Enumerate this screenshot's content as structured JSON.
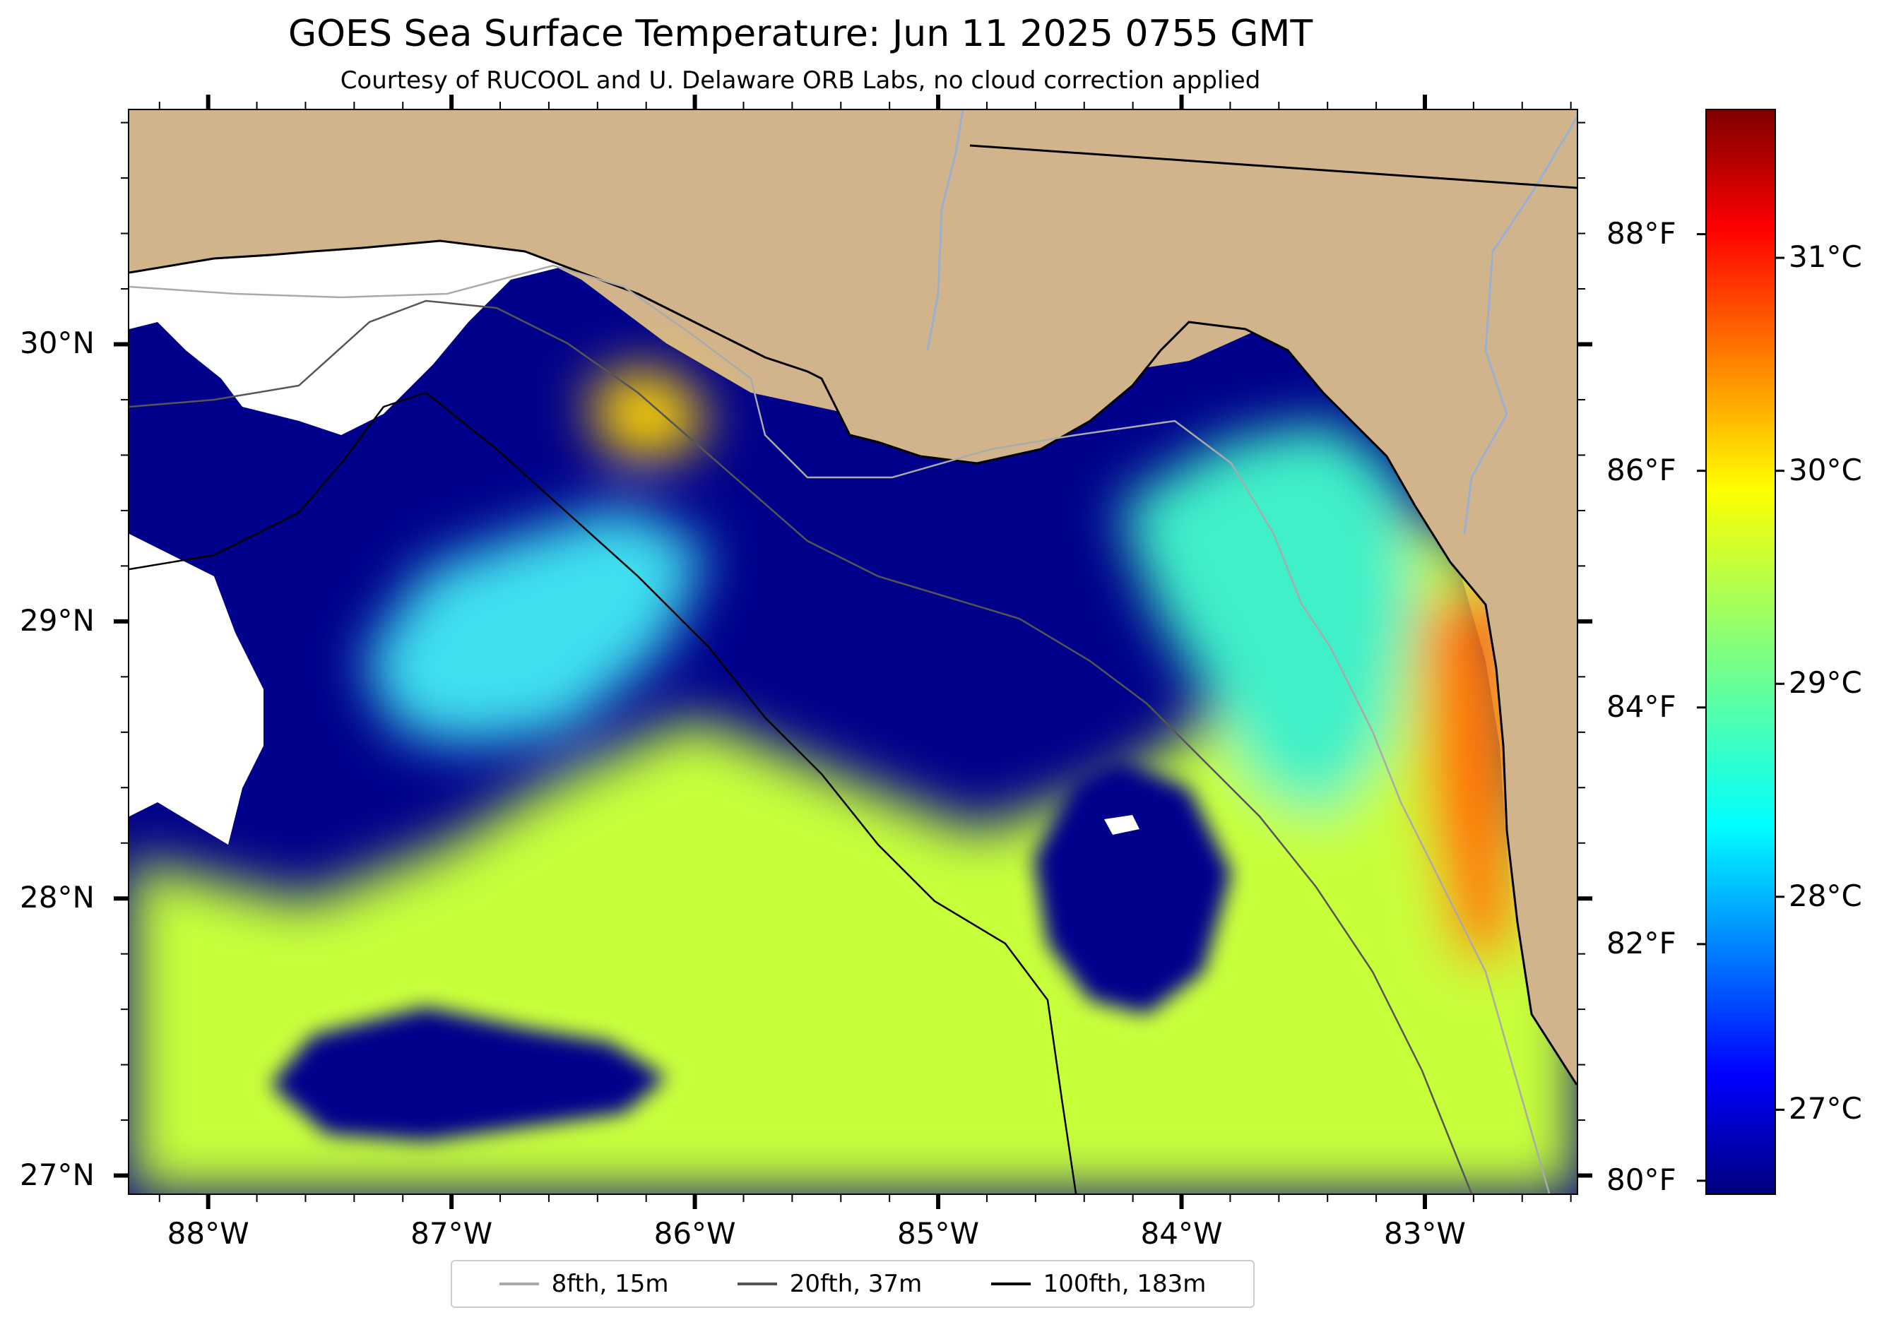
{
  "title": "GOES Sea Surface Temperature: Jun 11 2025 0755 GMT",
  "subtitle": "Courtesy of RUCOOL and U. Delaware ORB Labs, no cloud correction applied",
  "map": {
    "lon_range": [
      -88.33,
      -82.37
    ],
    "lat_range": [
      26.93,
      30.85
    ],
    "land_color": "#d2b48c",
    "cloud_color": "#ffffff"
  },
  "axes": {
    "x_ticks": [
      {
        "value": -88,
        "label": "88°W"
      },
      {
        "value": -87,
        "label": "87°W"
      },
      {
        "value": -86,
        "label": "86°W"
      },
      {
        "value": -85,
        "label": "85°W"
      },
      {
        "value": -84,
        "label": "84°W"
      },
      {
        "value": -83,
        "label": "83°W"
      }
    ],
    "y_ticks": [
      {
        "value": 30,
        "label": "30°N"
      },
      {
        "value": 29,
        "label": "29°N"
      },
      {
        "value": 28,
        "label": "28°N"
      },
      {
        "value": 27,
        "label": "27°N"
      }
    ]
  },
  "colorbar": {
    "colormap": "jet",
    "range_c": [
      26.6,
      31.7
    ],
    "celsius_ticks": [
      {
        "value": 27,
        "label": "27°C"
      },
      {
        "value": 28,
        "label": "28°C"
      },
      {
        "value": 29,
        "label": "29°C"
      },
      {
        "value": 30,
        "label": "30°C"
      },
      {
        "value": 31,
        "label": "31°C"
      }
    ],
    "fahrenheit_ticks": [
      {
        "value": 80,
        "label": "80°F"
      },
      {
        "value": 82,
        "label": "82°F"
      },
      {
        "value": 84,
        "label": "84°F"
      },
      {
        "value": 86,
        "label": "86°F"
      },
      {
        "value": 88,
        "label": "88°F"
      }
    ]
  },
  "legend": {
    "items": [
      {
        "label": "8fth, 15m",
        "color": "#aaaaaa"
      },
      {
        "label": "20fth, 37m",
        "color": "#555555"
      },
      {
        "label": "100fth, 183m",
        "color": "#000000"
      }
    ]
  }
}
